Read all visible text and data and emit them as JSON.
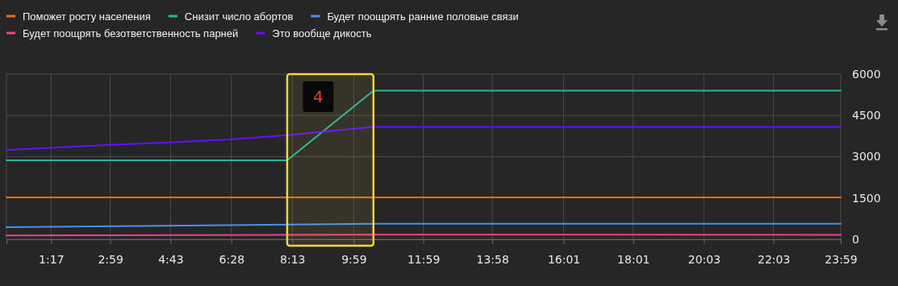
{
  "chart_data": {
    "type": "line",
    "series": [
      {
        "name": "Поможет росту населения",
        "color": "#ff6a00",
        "x": [
          0,
          23.983
        ],
        "values": [
          1520,
          1520
        ]
      },
      {
        "name": "Снизит число абортов",
        "color": "#26b5a0",
        "x": [
          0,
          8.07,
          10.55,
          23.983
        ],
        "values": [
          2870,
          2870,
          5400,
          5400
        ]
      },
      {
        "name": "Будет поощрять ранние половые связи",
        "color": "#4a8ff0",
        "x": [
          0,
          10.55,
          23.983
        ],
        "values": [
          440,
          560,
          560
        ]
      },
      {
        "name": "Будет поощрять безответственность парней",
        "color": "#f0408a",
        "x": [
          0,
          10.55,
          23.983
        ],
        "values": [
          140,
          170,
          160
        ]
      },
      {
        "name": "Это вообще дикость",
        "color": "#6a0dff",
        "x": [
          0,
          2.983,
          4.717,
          6.467,
          8.22,
          9.75,
          10.55,
          23.983
        ],
        "values": [
          3240,
          3430,
          3520,
          3630,
          3800,
          3990,
          4080,
          4080
        ]
      }
    ],
    "xlim": [
      0,
      23.983
    ],
    "xticks": [
      {
        "value": 1.283,
        "label": "1:17"
      },
      {
        "value": 2.983,
        "label": "2:59"
      },
      {
        "value": 4.717,
        "label": "4:43"
      },
      {
        "value": 6.467,
        "label": "6:28"
      },
      {
        "value": 8.217,
        "label": "8:13"
      },
      {
        "value": 9.983,
        "label": "9:59"
      },
      {
        "value": 11.983,
        "label": "11:59"
      },
      {
        "value": 13.967,
        "label": "13:58"
      },
      {
        "value": 16.017,
        "label": "16:01"
      },
      {
        "value": 18.017,
        "label": "18:01"
      },
      {
        "value": 20.05,
        "label": "20:03"
      },
      {
        "value": 22.05,
        "label": "22:03"
      },
      {
        "value": 23.983,
        "label": "23:59"
      }
    ],
    "ylim": [
      0,
      6000
    ],
    "yticks": [
      0,
      1500,
      3000,
      4500,
      6000
    ],
    "bands": [
      {
        "axis": "x",
        "from": 8.07,
        "to": 10.55,
        "label": "4",
        "color": "#f5d442"
      }
    ],
    "grid": true,
    "legend": "top left",
    "marker": "none",
    "line_style": "solid"
  }
}
